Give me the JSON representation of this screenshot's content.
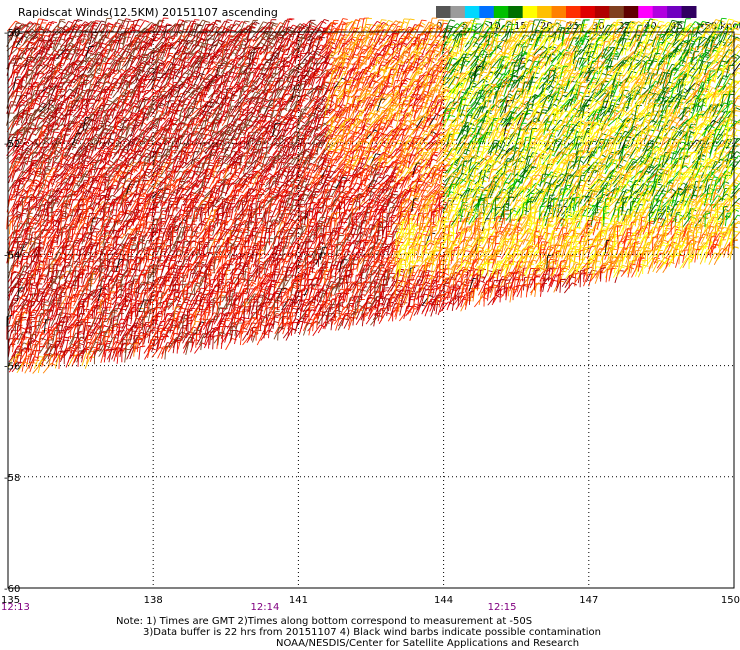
{
  "chart_data": {
    "type": "wind-barb-map",
    "title": "Rapidscat Winds(12.5KM) 20151107 ascending",
    "x_axis": {
      "ticks": [
        "135",
        "138",
        "141",
        "144",
        "147",
        "150"
      ],
      "range": [
        135,
        150
      ]
    },
    "y_axis": {
      "ticks": [
        "-50",
        "-52",
        "-54",
        "-56",
        "-58",
        "-60"
      ],
      "range": [
        -60,
        -50
      ]
    },
    "time_labels": [
      {
        "label": "12:13",
        "lon": 135
      },
      {
        "label": "12:14",
        "lon": 140.3
      },
      {
        "label": "12:15",
        "lon": 145.2
      }
    ],
    "legend": {
      "labels": [
        "0",
        "5",
        "10",
        "15",
        "20",
        "25",
        "30",
        "35",
        "40",
        "45",
        ">50 knots"
      ],
      "colors": [
        "#555555",
        "#9b9b9b",
        "#00d8ff",
        "#0070ff",
        "#00c000",
        "#007000",
        "#ffff00",
        "#ffc000",
        "#ff8000",
        "#ff3000",
        "#e00000",
        "#b00000",
        "#804020",
        "#600000",
        "#ff00ff",
        "#b000e0",
        "#7000c0",
        "#300060"
      ]
    },
    "swath": {
      "regions": [
        {
          "name": "northwest",
          "lon": [
            135,
            141.5
          ],
          "lat": [
            -52.5,
            -50
          ],
          "speed_knots": 32
        },
        {
          "name": "central-south",
          "lon": [
            135,
            143
          ],
          "lat": [
            -56,
            -52.5
          ],
          "speed_knots": 30
        },
        {
          "name": "northeast",
          "lon": [
            144,
            150
          ],
          "lat": [
            -53.5,
            -50
          ],
          "speed_knots": 18
        },
        {
          "name": "east-band",
          "lon": [
            143,
            150
          ],
          "lat": [
            -54.5,
            -53.5
          ],
          "speed_knots": 22
        },
        {
          "name": "southeast",
          "lon": [
            143,
            150
          ],
          "lat": [
            -55.2,
            -54.5
          ],
          "speed_knots": 28
        }
      ],
      "south_edge": [
        [
          135,
          -56.2
        ],
        [
          138,
          -55.9
        ],
        [
          141,
          -55.5
        ],
        [
          144,
          -55.1
        ],
        [
          147,
          -54.6
        ],
        [
          150,
          -54.1
        ]
      ]
    },
    "grid": true
  },
  "notes": {
    "line1": "Note: 1) Times are GMT 2)Times along bottom correspond to measurement at -50S",
    "line2": "3)Data buffer is 22 hrs from 20151107 4) Black wind barbs indicate possible contamination",
    "line3": "NOAA/NESDIS/Center for Satellite Applications and Research"
  }
}
